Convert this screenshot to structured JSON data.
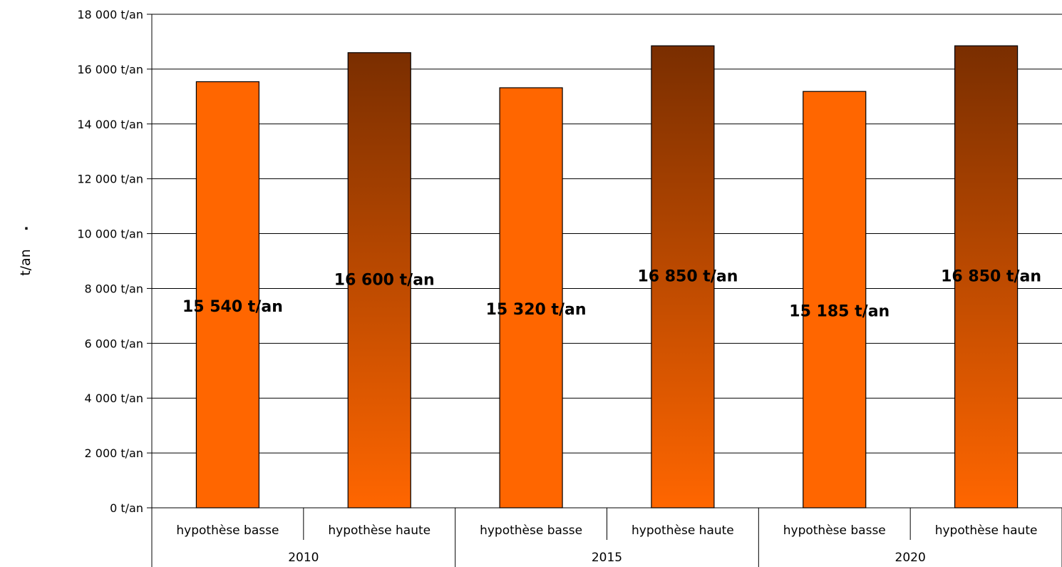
{
  "chart_data": {
    "type": "bar",
    "ylabel": "t/an",
    "ylabel_mark": ".",
    "ylim": [
      0,
      18000
    ],
    "ytick_values": [
      0,
      2000,
      4000,
      6000,
      8000,
      10000,
      12000,
      14000,
      16000,
      18000
    ],
    "ytick_labels": [
      "0 t/an",
      "2 000 t/an",
      "4 000 t/an",
      "6 000 t/an",
      "8 000 t/an",
      "10 000 t/an",
      "12 000 t/an",
      "14 000 t/an",
      "16 000 t/an",
      "18 000 t/an"
    ],
    "grid": true,
    "groups": [
      "2010",
      "2015",
      "2020"
    ],
    "categories": [
      "hypothèse basse",
      "hypothèse haute",
      "hypothèse basse",
      "hypothèse haute",
      "hypothèse basse",
      "hypothèse haute"
    ],
    "values": [
      15540,
      16600,
      15320,
      16850,
      15185,
      16850
    ],
    "data_labels": [
      "15 540 t/an",
      "16 600 t/an",
      "15 320 t/an",
      "16 850 t/an",
      "15 185 t/an",
      "16 850 t/an"
    ],
    "bar_styles": [
      "solid",
      "gradient",
      "solid",
      "gradient",
      "solid",
      "gradient"
    ],
    "colors": {
      "solid": "#ff6600",
      "gradient_top": "#7a2e00",
      "gradient_bottom": "#ff6600",
      "grid": "#000000"
    }
  }
}
